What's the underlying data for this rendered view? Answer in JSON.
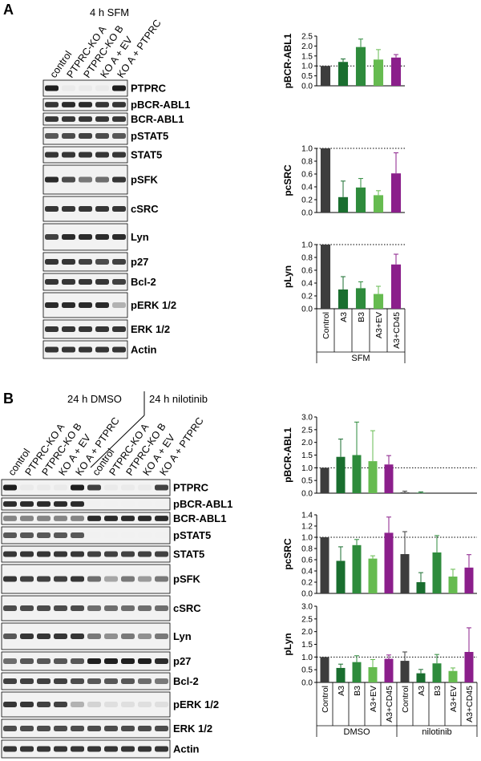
{
  "panel_a": {
    "letter": "A",
    "condition": "4 h SFM",
    "lanes": [
      "control",
      "PTPRC-KO A",
      "PTPRC-KO B",
      "KO A + EV",
      "KO A + PTPRC"
    ],
    "blots": [
      {
        "label": "PTPRC",
        "bands": [
          0.95,
          0.05,
          0.05,
          0.05,
          0.95
        ]
      },
      {
        "label": "pBCR-ABL1",
        "bands": [
          0.85,
          0.9,
          0.9,
          0.85,
          0.85
        ]
      },
      {
        "label": "BCR-ABL1",
        "bands": [
          0.85,
          0.85,
          0.85,
          0.85,
          0.85
        ]
      },
      {
        "label": "pSTAT5",
        "bands": [
          0.7,
          0.75,
          0.8,
          0.75,
          0.7
        ]
      },
      {
        "label": "STAT5",
        "bands": [
          0.85,
          0.85,
          0.85,
          0.85,
          0.85
        ]
      },
      {
        "label": "pSFK",
        "bands": [
          0.9,
          0.75,
          0.55,
          0.6,
          0.85
        ]
      },
      {
        "label": "cSRC",
        "bands": [
          0.85,
          0.85,
          0.85,
          0.85,
          0.85
        ]
      },
      {
        "label": "Lyn",
        "bands": [
          0.8,
          0.9,
          0.9,
          0.9,
          0.9
        ]
      },
      {
        "label": "p27",
        "bands": [
          0.85,
          0.85,
          0.8,
          0.75,
          0.8
        ]
      },
      {
        "label": "Bcl-2",
        "bands": [
          0.85,
          0.85,
          0.85,
          0.85,
          0.8
        ]
      },
      {
        "label": "pERK 1/2",
        "bands": [
          0.9,
          0.9,
          0.9,
          0.9,
          0.3
        ]
      },
      {
        "label": "ERK 1/2",
        "bands": [
          0.85,
          0.85,
          0.85,
          0.85,
          0.85
        ]
      },
      {
        "label": "Actin",
        "bands": [
          0.85,
          0.85,
          0.85,
          0.85,
          0.85
        ]
      }
    ],
    "group_label": "SFM"
  },
  "panel_b": {
    "letter": "B",
    "condition_1": "24 h DMSO",
    "condition_2": "24 h nilotinib",
    "lanes": [
      "control",
      "PTPRC-KO A",
      "PTPRC-KO B",
      "KO A + EV",
      "KO A + PTPRC",
      "control",
      "PTPRC-KO A",
      "PTPRC-KO B",
      "KO A + EV",
      "KO A + PTPRC"
    ],
    "blots": [
      {
        "label": "PTPRC",
        "bands": [
          0.95,
          0.05,
          0.05,
          0.05,
          0.95,
          0.8,
          0.05,
          0.05,
          0.05,
          0.8
        ]
      },
      {
        "label": "pBCR-ABL1",
        "bands": [
          0.9,
          0.9,
          0.9,
          0.9,
          0.9,
          0.02,
          0.02,
          0.02,
          0.02,
          0.02
        ]
      },
      {
        "label": "BCR-ABL1",
        "bands": [
          0.5,
          0.5,
          0.5,
          0.5,
          0.5,
          0.9,
          0.9,
          0.9,
          0.9,
          0.9
        ]
      },
      {
        "label": "pSTAT5",
        "bands": [
          0.7,
          0.7,
          0.7,
          0.7,
          0.7,
          0.02,
          0.02,
          0.02,
          0.02,
          0.02
        ]
      },
      {
        "label": "STAT5",
        "bands": [
          0.85,
          0.85,
          0.85,
          0.85,
          0.85,
          0.8,
          0.8,
          0.8,
          0.8,
          0.8
        ]
      },
      {
        "label": "pSFK",
        "bands": [
          0.85,
          0.8,
          0.8,
          0.8,
          0.85,
          0.6,
          0.35,
          0.55,
          0.4,
          0.55
        ]
      },
      {
        "label": "cSRC",
        "bands": [
          0.75,
          0.75,
          0.75,
          0.75,
          0.75,
          0.6,
          0.6,
          0.6,
          0.6,
          0.6
        ]
      },
      {
        "label": "Lyn",
        "bands": [
          0.7,
          0.85,
          0.85,
          0.85,
          0.85,
          0.55,
          0.45,
          0.55,
          0.45,
          0.55
        ]
      },
      {
        "label": "p27",
        "bands": [
          0.6,
          0.7,
          0.7,
          0.7,
          0.7,
          0.95,
          0.95,
          0.95,
          0.95,
          0.9
        ]
      },
      {
        "label": "Bcl-2",
        "bands": [
          0.8,
          0.8,
          0.8,
          0.8,
          0.75,
          0.7,
          0.7,
          0.7,
          0.6,
          0.55
        ]
      },
      {
        "label": "pERK 1/2",
        "bands": [
          0.85,
          0.85,
          0.8,
          0.8,
          0.3,
          0.15,
          0.1,
          0.1,
          0.1,
          0.1
        ]
      },
      {
        "label": "ERK 1/2",
        "bands": [
          0.75,
          0.75,
          0.75,
          0.75,
          0.75,
          0.75,
          0.75,
          0.75,
          0.75,
          0.75
        ]
      },
      {
        "label": "Actin",
        "bands": [
          0.85,
          0.85,
          0.85,
          0.85,
          0.85,
          0.85,
          0.85,
          0.85,
          0.85,
          0.85
        ]
      }
    ],
    "group_labels": [
      "DMSO",
      "nilotinib"
    ]
  },
  "bar_colors": [
    "#3d3d3d",
    "#1a6e2f",
    "#2e8b3c",
    "#66bb50",
    "#8b1f8b"
  ],
  "chart_data": [
    {
      "type": "bar",
      "panel": "A",
      "ylabel": "pBCR-ABL1",
      "ylim": [
        0,
        2.5
      ],
      "yticks": [
        0.0,
        0.5,
        1.0,
        1.5,
        2.0,
        2.5
      ],
      "categories": [
        "Control",
        "A3",
        "B3",
        "A3+EV",
        "A3+CD45"
      ],
      "values": [
        1.0,
        1.2,
        1.95,
        1.32,
        1.42
      ],
      "errors": [
        0,
        0.15,
        0.4,
        0.5,
        0.15
      ],
      "reference": 1.0
    },
    {
      "type": "bar",
      "panel": "A",
      "ylabel": "pcSRC",
      "ylim": [
        0,
        1.0
      ],
      "yticks": [
        0.0,
        0.2,
        0.4,
        0.6,
        0.8,
        1.0
      ],
      "categories": [
        "Control",
        "A3",
        "B3",
        "A3+EV",
        "A3+CD45"
      ],
      "values": [
        1.0,
        0.24,
        0.39,
        0.27,
        0.61
      ],
      "errors": [
        0,
        0.25,
        0.14,
        0.07,
        0.32
      ],
      "reference": 1.0
    },
    {
      "type": "bar",
      "panel": "A",
      "ylabel": "pLyn",
      "ylim": [
        0,
        1.0
      ],
      "yticks": [
        0.0,
        0.2,
        0.4,
        0.6,
        0.8,
        1.0
      ],
      "categories": [
        "Control",
        "A3",
        "B3",
        "A3+EV",
        "A3+CD45"
      ],
      "values": [
        1.0,
        0.3,
        0.32,
        0.23,
        0.69
      ],
      "errors": [
        0,
        0.2,
        0.1,
        0.12,
        0.16
      ],
      "reference": 1.0
    },
    {
      "type": "bar",
      "panel": "B",
      "ylabel": "pBCR-ABL1",
      "ylim": [
        0,
        3.0
      ],
      "yticks": [
        0.0,
        0.5,
        1.0,
        1.5,
        2.0,
        2.5,
        3.0
      ],
      "categories": [
        "Control",
        "A3",
        "B3",
        "A3+EV",
        "A3+CD45",
        "Control",
        "A3",
        "B3",
        "A3+EV",
        "A3+CD45"
      ],
      "values": [
        1.0,
        1.43,
        1.5,
        1.26,
        1.13,
        0.03,
        0.02,
        0.0,
        0.0,
        0.0
      ],
      "errors": [
        0,
        0.7,
        1.3,
        1.2,
        0.35,
        0.05,
        0.03,
        0,
        0,
        0
      ],
      "reference": 1.0
    },
    {
      "type": "bar",
      "panel": "B",
      "ylabel": "pcSRC",
      "ylim": [
        0,
        1.4
      ],
      "yticks": [
        0.0,
        0.2,
        0.4,
        0.6,
        0.8,
        1.0,
        1.2,
        1.4
      ],
      "categories": [
        "Control",
        "A3",
        "B3",
        "A3+EV",
        "A3+CD45",
        "Control",
        "A3",
        "B3",
        "A3+EV",
        "A3+CD45"
      ],
      "values": [
        1.0,
        0.58,
        0.86,
        0.62,
        1.08,
        0.7,
        0.2,
        0.73,
        0.3,
        0.46
      ],
      "errors": [
        0,
        0.25,
        0.1,
        0.05,
        0.28,
        0.4,
        0.17,
        0.3,
        0.13,
        0.23
      ],
      "reference": 1.0
    },
    {
      "type": "bar",
      "panel": "B",
      "ylabel": "pLyn",
      "ylim": [
        0,
        3.0
      ],
      "yticks": [
        0.0,
        0.5,
        1.0,
        1.5,
        2.0,
        2.5,
        3.0
      ],
      "categories": [
        "Control",
        "A3",
        "B3",
        "A3+EV",
        "A3+CD45",
        "Control",
        "A3",
        "B3",
        "A3+EV",
        "A3+CD45"
      ],
      "values": [
        1.0,
        0.57,
        0.8,
        0.6,
        0.93,
        0.85,
        0.36,
        0.75,
        0.45,
        1.2
      ],
      "errors": [
        0,
        0.15,
        0.25,
        0.3,
        0.15,
        0.35,
        0.15,
        0.35,
        0.12,
        0.95
      ],
      "reference": 1.0
    }
  ]
}
